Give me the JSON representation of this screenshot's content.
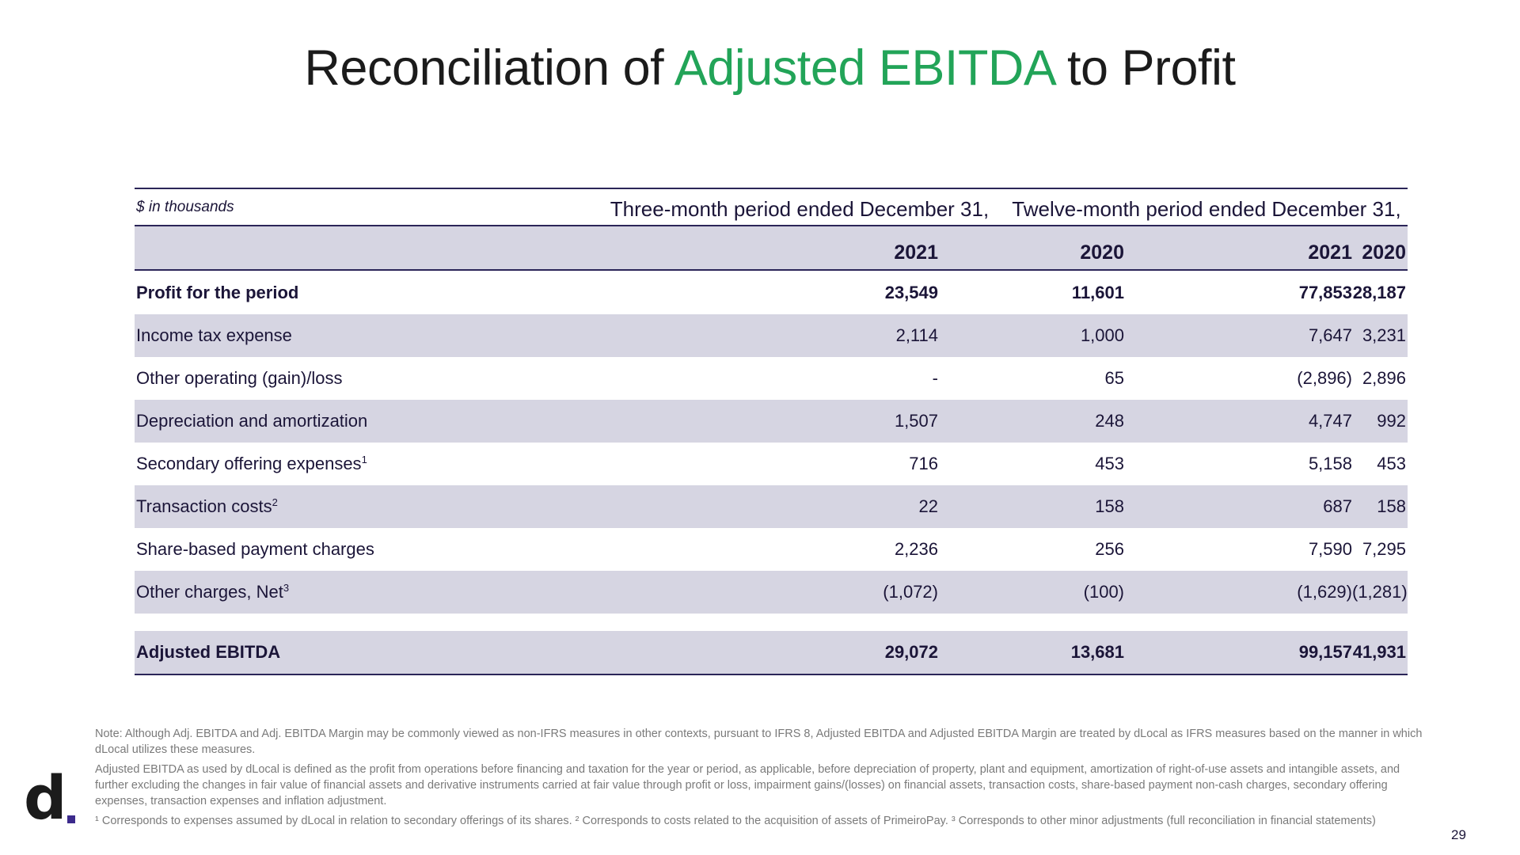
{
  "title": {
    "part1": "Reconciliation of ",
    "accent": "Adjusted EBITDA",
    "part2": " to Profit"
  },
  "colors": {
    "accent": "#22a458",
    "navy": "#2b2558",
    "row_shade": "#d6d5e2",
    "logo_dot": "#3c2a8c"
  },
  "table": {
    "units": "$ in thousands",
    "group_headers": [
      "Three-month period ended December 31,",
      "Twelve-month period ended December 31,"
    ],
    "years": [
      "2021",
      "2020",
      "2021",
      "2020"
    ],
    "rows": [
      {
        "label": "Profit for the period",
        "sup": "",
        "values": [
          "23,549",
          "11,601",
          "77,853",
          "28,187"
        ]
      },
      {
        "label": "Income tax expense",
        "sup": "",
        "values": [
          "2,114",
          "1,000",
          "7,647",
          "3,231"
        ]
      },
      {
        "label": "Other operating (gain)/loss",
        "sup": "",
        "values": [
          "-",
          "65",
          "(2,896)",
          "2,896"
        ]
      },
      {
        "label": "Depreciation and amortization",
        "sup": "",
        "values": [
          "1,507",
          "248",
          "4,747",
          "992"
        ]
      },
      {
        "label": "Secondary offering expenses",
        "sup": "1",
        "values": [
          "716",
          "453",
          "5,158",
          "453"
        ]
      },
      {
        "label": "Transaction costs",
        "sup": "2",
        "values": [
          "22",
          "158",
          "687",
          "158"
        ]
      },
      {
        "label": "Share-based payment charges",
        "sup": "",
        "values": [
          "2,236",
          "256",
          "7,590",
          "7,295"
        ]
      },
      {
        "label": "Other charges, Net",
        "sup": "3",
        "values": [
          "(1,072)",
          "(100)",
          "(1,629)",
          "(1,281)"
        ]
      }
    ],
    "total": {
      "label": "Adjusted EBITDA",
      "values": [
        "29,072",
        "13,681",
        "99,157",
        "41,931"
      ]
    }
  },
  "notes": [
    "Note: Although Adj. EBITDA and Adj. EBITDA Margin may be commonly viewed as non-IFRS measures in other contexts, pursuant to IFRS 8, Adjusted EBITDA and Adjusted EBITDA Margin are treated by dLocal as IFRS measures based on the manner in which dLocal utilizes these measures.",
    "Adjusted EBITDA as used by dLocal is defined as the profit from operations before financing and taxation for the year or period, as applicable, before depreciation of property, plant and equipment, amortization of right-of-use assets and intangible assets, and further excluding the changes in fair value of financial assets and derivative instruments carried at fair value through profit or loss, impairment gains/(losses) on financial assets, transaction costs, share-based payment non-cash charges, secondary offering expenses, transaction expenses and inflation adjustment.",
    "¹ Corresponds to expenses assumed by dLocal in relation to secondary offerings of its shares. ² Corresponds to costs related to the acquisition of assets of PrimeiroPay. ³ Corresponds to other minor adjustments (full reconciliation in financial statements)"
  ],
  "logo": {
    "letter": "d"
  },
  "page_number": "29"
}
